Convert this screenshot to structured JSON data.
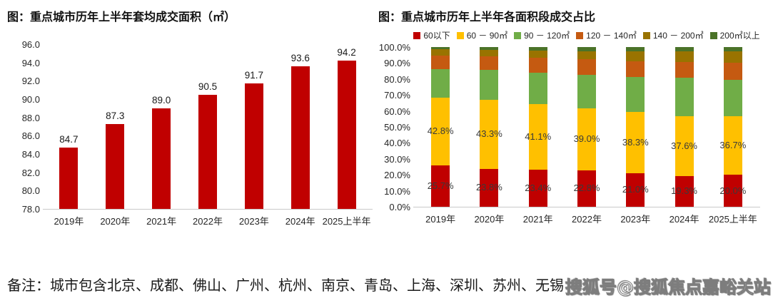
{
  "chart_data": [
    {
      "type": "bar",
      "title": "图：重点城市历年上半年套均成交面积（㎡）",
      "categories": [
        "2019年",
        "2020年",
        "2021年",
        "2022年",
        "2023年",
        "2024年",
        "2025上半年"
      ],
      "values": [
        84.7,
        87.3,
        89.0,
        90.5,
        91.7,
        93.6,
        94.2
      ],
      "value_labels": [
        "84.7",
        "87.3",
        "89.0",
        "90.5",
        "91.7",
        "93.6",
        "94.2"
      ],
      "y_ticks": [
        "96.0",
        "94.0",
        "92.0",
        "90.0",
        "88.0",
        "86.0",
        "84.0",
        "82.0",
        "80.0",
        "78.0"
      ],
      "ylim": [
        78.0,
        96.0
      ],
      "bar_color": "#C00000",
      "grid": false,
      "legend_position": "none"
    },
    {
      "type": "stacked-bar",
      "title": "图：重点城市历年上半年各面积段成交占比",
      "categories": [
        "2019年",
        "2020年",
        "2021年",
        "2022年",
        "2023年",
        "2024年",
        "2025上半年"
      ],
      "y_ticks": [
        "100.0%",
        "90.0%",
        "80.0%",
        "70.0%",
        "60.0%",
        "50.0%",
        "40.0%",
        "30.0%",
        "20.0%",
        "10.0%",
        "0.0%"
      ],
      "ylim": [
        0,
        100
      ],
      "grid": false,
      "legend_position": "top",
      "legend": [
        {
          "label": "60以下",
          "color": "#C00000"
        },
        {
          "label": "60 － 90㎡",
          "color": "#FFC000"
        },
        {
          "label": "90 － 120㎡",
          "color": "#70AD47"
        },
        {
          "label": "120 － 140㎡",
          "color": "#C55A11"
        },
        {
          "label": "140 － 200㎡",
          "color": "#997300"
        },
        {
          "label": "200㎡以上",
          "color": "#4B7328"
        }
      ],
      "series": [
        {
          "name": "60以下",
          "color": "#C00000",
          "values": [
            25.7,
            23.8,
            23.4,
            22.8,
            21.0,
            19.3,
            20.0
          ],
          "labels": [
            "25.7%",
            "23.8%",
            "23.4%",
            "22.8%",
            "21.0%",
            "19.3%",
            "20.0%"
          ]
        },
        {
          "name": "60 － 90㎡",
          "color": "#FFC000",
          "values": [
            42.8,
            43.3,
            41.1,
            39.0,
            38.3,
            37.6,
            36.7
          ],
          "labels": [
            "42.8%",
            "43.3%",
            "41.1%",
            "39.0%",
            "38.3%",
            "37.6%",
            "36.7%"
          ]
        },
        {
          "name": "90 － 120㎡",
          "color": "#70AD47",
          "values": [
            17.8,
            18.5,
            19.6,
            20.8,
            21.8,
            23.8,
            22.9
          ]
        },
        {
          "name": "120 － 140㎡",
          "color": "#C55A11",
          "values": [
            8.2,
            8.6,
            9.2,
            9.7,
            10.1,
            10.1,
            10.7
          ]
        },
        {
          "name": "140 － 200㎡",
          "color": "#997300",
          "values": [
            4.0,
            3.9,
            4.5,
            5.2,
            6.3,
            6.4,
            6.9
          ]
        },
        {
          "name": "200㎡以上",
          "color": "#4B7328",
          "values": [
            1.5,
            1.9,
            2.2,
            2.5,
            2.5,
            2.8,
            2.8
          ]
        }
      ]
    }
  ],
  "note": {
    "text": "备注：城市包含北京、成都、佛山、广州、杭州、南京、青岛、上海、深圳、苏州、无锡"
  },
  "watermark": {
    "text": "搜狐号@搜狐焦点嘉峪关站"
  }
}
